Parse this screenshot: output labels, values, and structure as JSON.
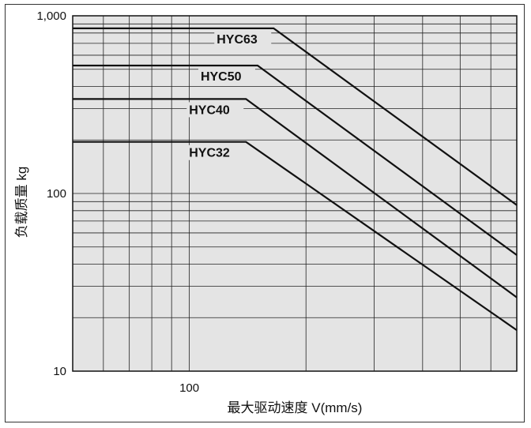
{
  "chart_data": {
    "type": "line",
    "xlabel": "最大驱动速度  V(mm/s)",
    "ylabel": "负载质量  kg",
    "x_scale": "log",
    "y_scale": "log",
    "xlim": [
      50,
      700
    ],
    "ylim": [
      10,
      1000
    ],
    "x_tick_labels": [
      {
        "value": 100,
        "label": "100"
      }
    ],
    "y_tick_labels": [
      {
        "value": 10,
        "label": "10"
      },
      {
        "value": 100,
        "label": "100"
      },
      {
        "value": 1000,
        "label": "1,000"
      }
    ],
    "x_minor_ticks": [
      60,
      70,
      80,
      90,
      200,
      300,
      400,
      500,
      600
    ],
    "y_minor_ticks": [
      20,
      30,
      40,
      50,
      60,
      70,
      80,
      90,
      200,
      300,
      400,
      500,
      600,
      700,
      800,
      900
    ],
    "grid": true,
    "series": [
      {
        "name": "HYC63",
        "points": [
          [
            50,
            850
          ],
          [
            165,
            850
          ],
          [
            700,
            86
          ]
        ]
      },
      {
        "name": "HYC50",
        "points": [
          [
            50,
            525
          ],
          [
            150,
            525
          ],
          [
            700,
            45
          ]
        ]
      },
      {
        "name": "HYC40",
        "points": [
          [
            50,
            340
          ],
          [
            140,
            340
          ],
          [
            700,
            26
          ]
        ]
      },
      {
        "name": "HYC32",
        "points": [
          [
            50,
            195
          ],
          [
            140,
            195
          ],
          [
            700,
            17
          ]
        ]
      }
    ],
    "colors": {
      "plot_bg": "#e4e4e4",
      "grid": "#222222",
      "line": "#111111"
    }
  }
}
